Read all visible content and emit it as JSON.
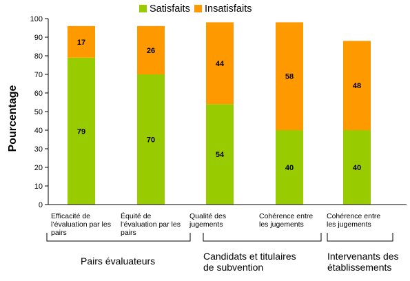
{
  "chart_data": {
    "type": "bar",
    "stacked": true,
    "ylabel": "Pourcentage",
    "ylim": [
      0,
      100
    ],
    "yticks": [
      0,
      10,
      20,
      30,
      40,
      50,
      60,
      70,
      80,
      90,
      100
    ],
    "legend_position": "top",
    "categories": [
      [
        "Efficacité de",
        "l’évaluation par les",
        "pairs"
      ],
      [
        "Équité de",
        "l’évaluation par les",
        "pairs"
      ],
      [
        "Qualité des",
        "jugements"
      ],
      [
        "Cohérence entre",
        "les jugements"
      ],
      [
        "Cohérence entre",
        "les jugements"
      ]
    ],
    "series": [
      {
        "name": "Satisfaits",
        "color": "#99cc00",
        "values": [
          79,
          70,
          54,
          40,
          40
        ]
      },
      {
        "name": "Insatisfaits",
        "color": "#ff9900",
        "values": [
          17,
          26,
          44,
          58,
          48
        ]
      }
    ],
    "groups": [
      {
        "label": [
          "Pairs évaluateurs"
        ],
        "categories": [
          0,
          1
        ]
      },
      {
        "label": [
          "Candidats et titulaires",
          "de subvention"
        ],
        "categories": [
          2,
          3
        ]
      },
      {
        "label": [
          "Intervenants des",
          "établissements"
        ],
        "categories": [
          4
        ]
      }
    ]
  }
}
